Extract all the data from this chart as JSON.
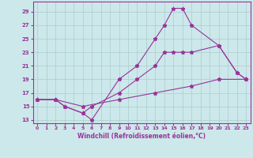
{
  "xlabel": "Windchill (Refroidissement éolien,°C)",
  "xlim": [
    -0.5,
    23.5
  ],
  "ylim": [
    12.5,
    30.5
  ],
  "yticks": [
    13,
    15,
    17,
    19,
    21,
    23,
    25,
    27,
    29
  ],
  "xticks": [
    0,
    1,
    2,
    3,
    4,
    5,
    6,
    7,
    8,
    9,
    10,
    11,
    12,
    13,
    14,
    15,
    16,
    17,
    18,
    19,
    20,
    21,
    22,
    23
  ],
  "bg_color": "#cce8ea",
  "grid_color": "#aacccc",
  "line_color": "#993399",
  "curves": [
    {
      "x": [
        0,
        2,
        3,
        5,
        6,
        9,
        11,
        13,
        14,
        15,
        16,
        17,
        20,
        22,
        23
      ],
      "y": [
        16,
        16,
        15,
        14,
        13,
        19,
        21,
        25,
        27,
        29.5,
        29.5,
        27,
        24,
        20,
        19
      ]
    },
    {
      "x": [
        0,
        2,
        3,
        5,
        6,
        9,
        11,
        13,
        14,
        15,
        16,
        17,
        20,
        22,
        23
      ],
      "y": [
        16,
        16,
        15,
        14,
        15,
        17,
        19,
        21,
        23,
        23,
        23,
        23,
        24,
        20,
        19
      ]
    },
    {
      "x": [
        0,
        2,
        5,
        9,
        13,
        17,
        20,
        23
      ],
      "y": [
        16,
        16,
        15,
        16,
        17,
        18,
        19,
        19
      ]
    }
  ]
}
